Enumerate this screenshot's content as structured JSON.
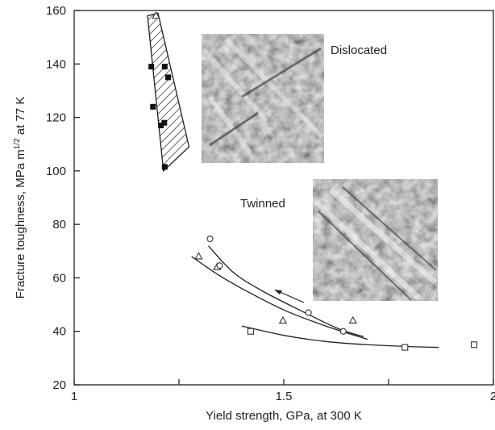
{
  "chart_data": {
    "type": "scatter",
    "xlabel": "Yield strength, GPa, at 300 K",
    "ylabel": "Fracture toughness, MPa m",
    "ylabel_sup": "1/2",
    "ylabel_end": " at 77 K",
    "xlim": [
      1,
      2
    ],
    "ylim": [
      20,
      160
    ],
    "xticks": [
      1,
      1.5,
      2
    ],
    "minor_xticks": [
      1.25,
      1.75
    ],
    "yticks": [
      20,
      40,
      60,
      80,
      100,
      120,
      140,
      160
    ],
    "annotations": [
      "Dislocated",
      "Twinned"
    ],
    "band": {
      "x": [
        1.175,
        1.2,
        1.274,
        1.213
      ],
      "values": [
        158,
        159,
        109,
        100
      ]
    },
    "series": [
      {
        "marker": "filled-square",
        "color": "#111111",
        "x": [
          1.184,
          1.216,
          1.224,
          1.188,
          1.207,
          1.215,
          1.216
        ],
        "values": [
          139,
          139,
          135,
          124,
          117,
          118,
          101.5
        ]
      },
      {
        "marker": "open-triangle",
        "color": "#333333",
        "x": [
          1.195,
          1.297,
          1.341,
          1.498,
          1.665
        ],
        "values": [
          158,
          68,
          64,
          44,
          44
        ]
      },
      {
        "marker": "open-circle",
        "color": "#333333",
        "x": [
          1.324,
          1.347,
          1.559,
          1.642
        ],
        "values": [
          74.6,
          64.6,
          47,
          40
        ]
      },
      {
        "marker": "open-square",
        "color": "#333333",
        "x": [
          1.421,
          1.789,
          1.954
        ],
        "values": [
          40,
          34,
          35
        ]
      }
    ],
    "curves": [
      {
        "x": [
          1.32,
          1.38,
          1.45,
          1.55,
          1.63,
          1.69
        ],
        "values": [
          72,
          62,
          55,
          47,
          41,
          38
        ]
      },
      {
        "x": [
          1.28,
          1.34,
          1.4,
          1.5,
          1.6,
          1.7
        ],
        "values": [
          68,
          61.5,
          56,
          48,
          42,
          37
        ]
      },
      {
        "x": [
          1.4,
          1.5,
          1.6,
          1.7,
          1.8,
          1.87
        ],
        "values": [
          42,
          38.5,
          36.2,
          35,
          34.3,
          34
        ]
      }
    ]
  }
}
